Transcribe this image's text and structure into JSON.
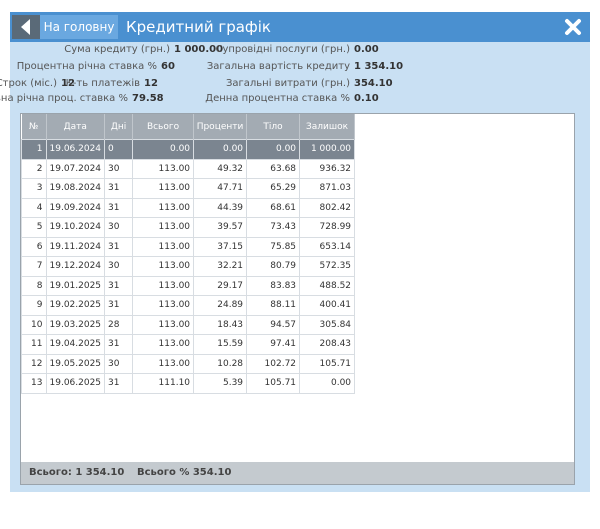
{
  "header": {
    "back_button": "На головну",
    "title": "Кредитний графік"
  },
  "summary": [
    {
      "label": "Сума кредиту (грн.)",
      "value": "1 000.00"
    },
    {
      "label": "Процентна річна ставка %",
      "value": "60"
    },
    {
      "label": "Строк (міс.)",
      "value": "12"
    },
    {
      "label": "К-ть платежів",
      "value": "12"
    },
    {
      "label": "Реальна річна проц. ставка %",
      "value": "79.58"
    },
    {
      "label": "Супровідні послуги (грн.)",
      "value": "0.00"
    },
    {
      "label": "Загальна вартість кредиту",
      "value": "1 354.10"
    },
    {
      "label": "Загальні витрати (грн.)",
      "value": "354.10"
    },
    {
      "label": "Денна процентна ставка %",
      "value": "0.10"
    }
  ],
  "table": {
    "columns": [
      "№",
      "Дата",
      "Дні",
      "Всього",
      "Проценти",
      "Тіло",
      "Залишок"
    ],
    "rows": [
      [
        "1",
        "19.06.2024",
        "0",
        "0.00",
        "0.00",
        "0.00",
        "1 000.00"
      ],
      [
        "2",
        "19.07.2024",
        "30",
        "113.00",
        "49.32",
        "63.68",
        "936.32"
      ],
      [
        "3",
        "19.08.2024",
        "31",
        "113.00",
        "47.71",
        "65.29",
        "871.03"
      ],
      [
        "4",
        "19.09.2024",
        "31",
        "113.00",
        "44.39",
        "68.61",
        "802.42"
      ],
      [
        "5",
        "19.10.2024",
        "30",
        "113.00",
        "39.57",
        "73.43",
        "728.99"
      ],
      [
        "6",
        "19.11.2024",
        "31",
        "113.00",
        "37.15",
        "75.85",
        "653.14"
      ],
      [
        "7",
        "19.12.2024",
        "30",
        "113.00",
        "32.21",
        "80.79",
        "572.35"
      ],
      [
        "8",
        "19.01.2025",
        "31",
        "113.00",
        "29.17",
        "83.83",
        "488.52"
      ],
      [
        "9",
        "19.02.2025",
        "31",
        "113.00",
        "24.89",
        "88.11",
        "400.41"
      ],
      [
        "10",
        "19.03.2025",
        "28",
        "113.00",
        "18.43",
        "94.57",
        "305.84"
      ],
      [
        "11",
        "19.04.2025",
        "31",
        "113.00",
        "15.59",
        "97.41",
        "208.43"
      ],
      [
        "12",
        "19.05.2025",
        "30",
        "113.00",
        "10.28",
        "102.72",
        "105.71"
      ],
      [
        "13",
        "19.06.2025",
        "31",
        "111.10",
        "5.39",
        "105.71",
        "0.00"
      ]
    ]
  },
  "footer": [
    "Всього: 1 354.10",
    "Всього % 354.10"
  ]
}
